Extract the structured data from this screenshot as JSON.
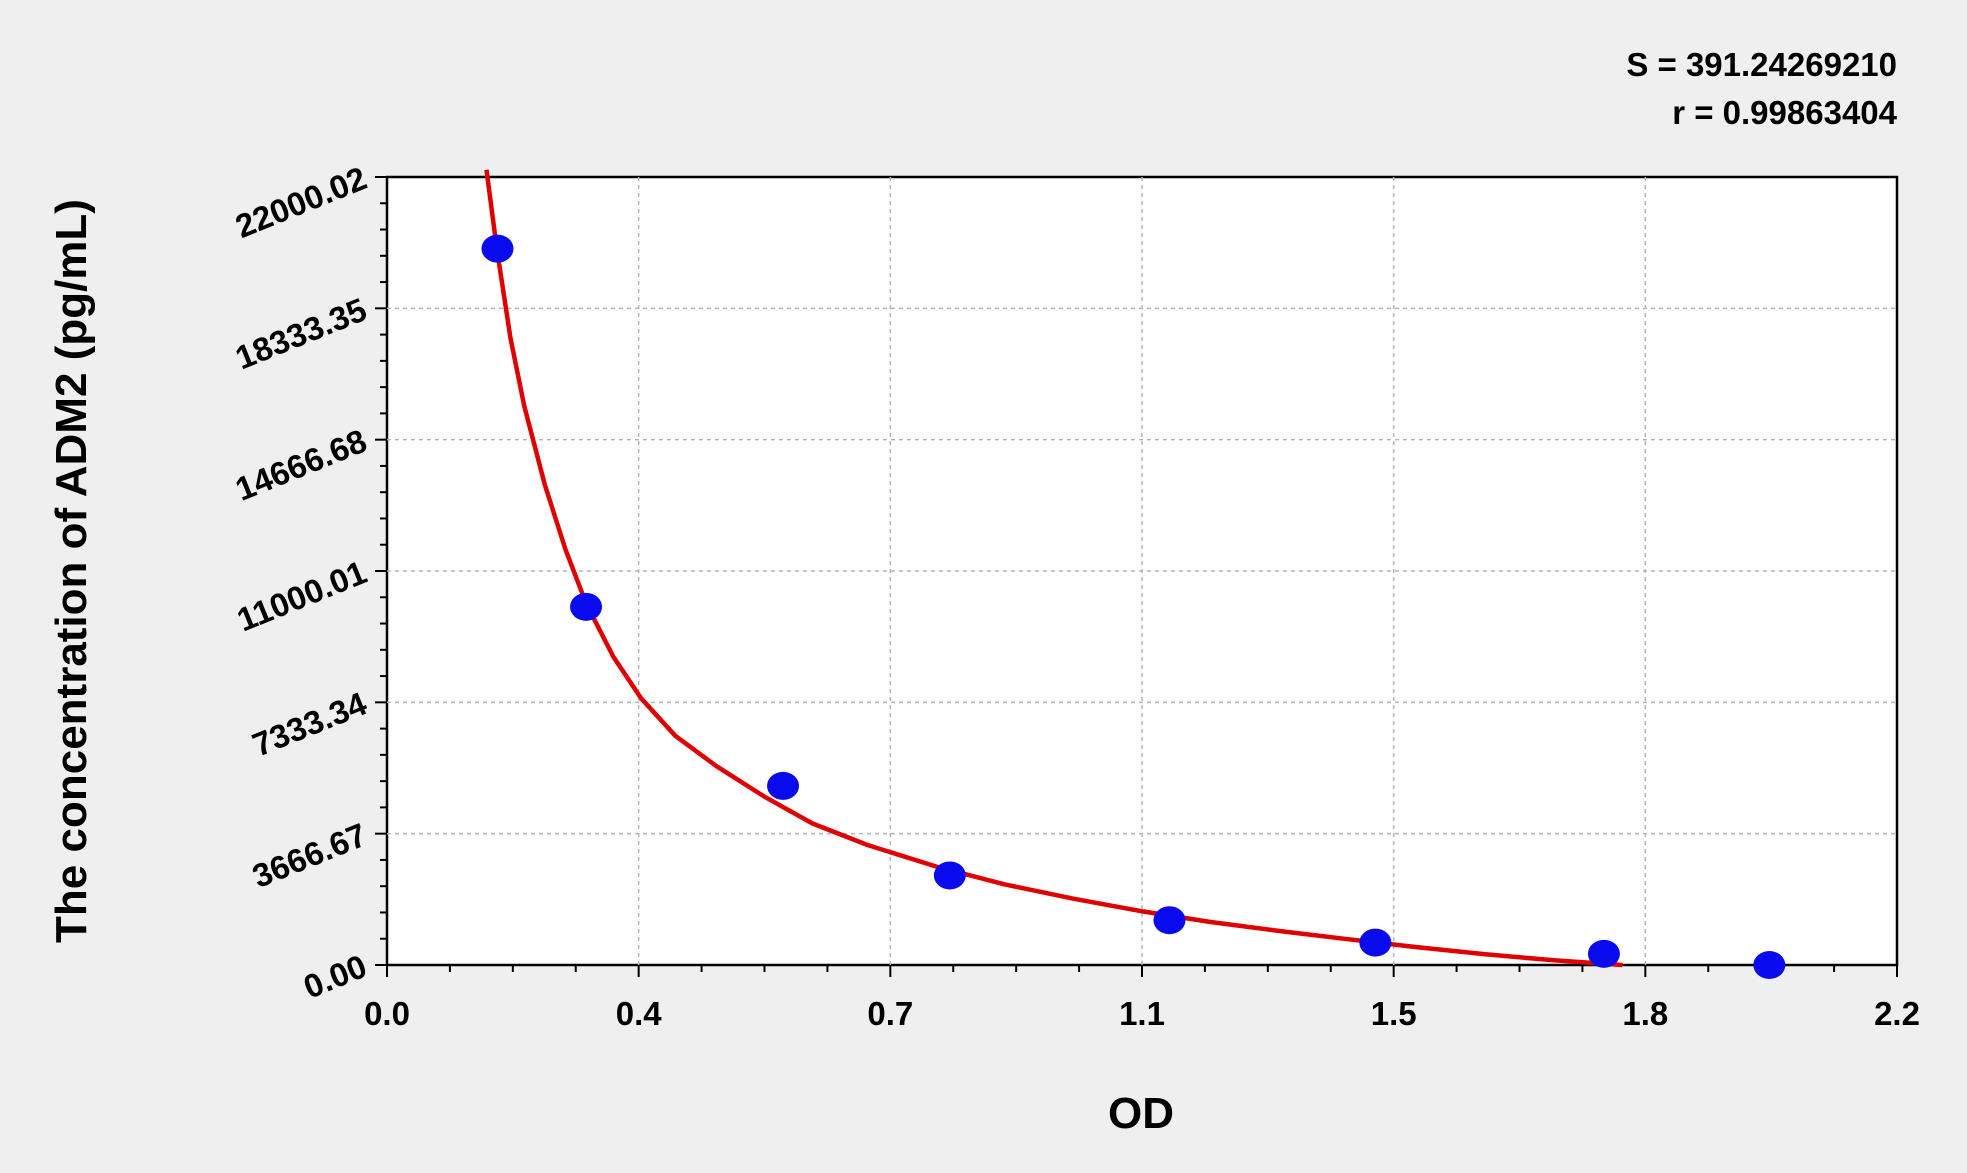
{
  "chart_data": {
    "type": "scatter",
    "title": "",
    "xlabel": "OD",
    "ylabel": "The concentration of ADM2 (pg/mL)",
    "xlim": [
      0.0,
      2.2
    ],
    "ylim": [
      0.0,
      22000.02
    ],
    "x_ticks": [
      "0.0",
      "0.4",
      "0.7",
      "1.1",
      "1.5",
      "1.8",
      "2.2"
    ],
    "y_ticks": [
      "0.00",
      "3666.67",
      "7333.34",
      "11000.01",
      "14666.68",
      "18333.35",
      "22000.02"
    ],
    "grid": true,
    "annotations": [
      "S = 391.24269210",
      "r = 0.99863404"
    ],
    "series": [
      {
        "type": "scatter",
        "color": "#0a0aee",
        "x": [
          0.161,
          0.29,
          0.577,
          0.82,
          1.14,
          1.44,
          1.773,
          2.014
        ],
        "y": [
          20000,
          10000,
          5000,
          2500,
          1250,
          625,
          312,
          0
        ]
      },
      {
        "type": "line",
        "color": "#e00000",
        "x": [
          0.145,
          0.16,
          0.18,
          0.2,
          0.23,
          0.26,
          0.29,
          0.33,
          0.37,
          0.42,
          0.48,
          0.55,
          0.62,
          0.7,
          0.8,
          0.9,
          1.0,
          1.1,
          1.2,
          1.3,
          1.4,
          1.5,
          1.6,
          1.7,
          1.8
        ],
        "y": [
          22200,
          20000,
          17500,
          15600,
          13400,
          11600,
          10100,
          8600,
          7450,
          6400,
          5550,
          4700,
          3950,
          3350,
          2750,
          2250,
          1850,
          1500,
          1200,
          950,
          720,
          500,
          300,
          130,
          0
        ]
      }
    ]
  }
}
